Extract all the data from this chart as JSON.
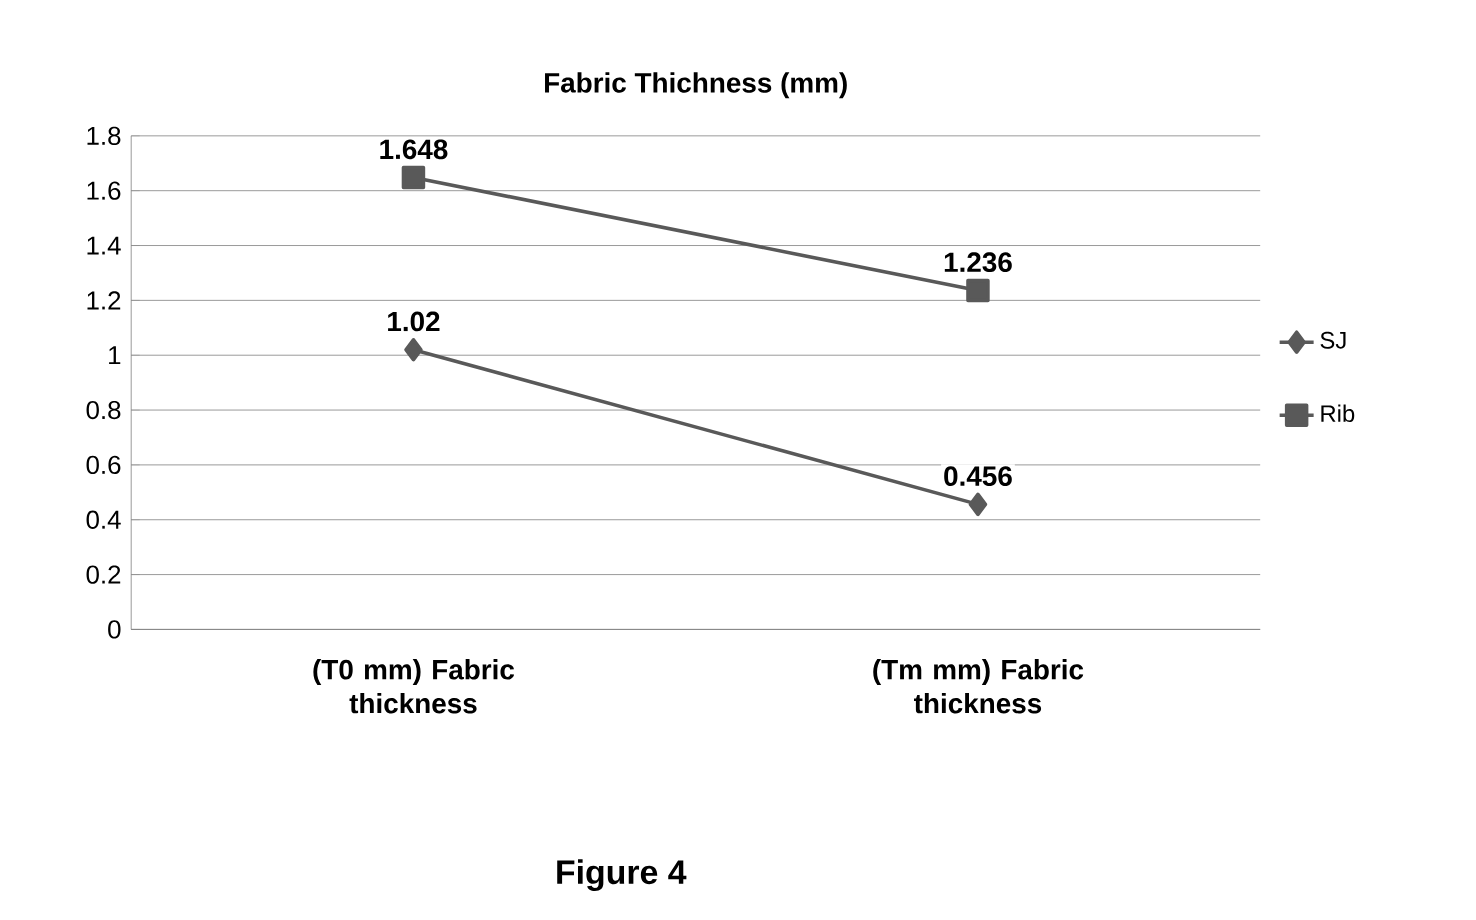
{
  "chart_data": {
    "type": "line",
    "title": "Fabric Thichness (mm)",
    "categories": [
      "(T0 mm) Fabric thickness",
      "(Tm mm) Fabric thickness"
    ],
    "series": [
      {
        "name": "SJ",
        "color": "#595959",
        "marker": "diamond",
        "values": [
          1.02,
          0.456
        ]
      },
      {
        "name": "Rib",
        "color": "#595959",
        "marker": "square",
        "values": [
          1.648,
          1.236
        ]
      }
    ],
    "ylim": [
      0,
      1.8
    ],
    "yticks": [
      0,
      0.2,
      0.4,
      0.6,
      0.8,
      1,
      1.2,
      1.4,
      1.6,
      1.8
    ],
    "grid": "y",
    "legend": "right",
    "data_labels": true,
    "line_style": "solid",
    "annotations": [
      "Figure 4"
    ]
  }
}
